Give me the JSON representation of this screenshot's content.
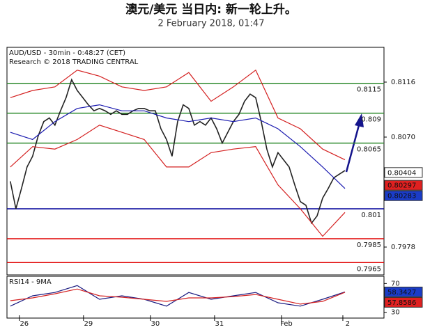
{
  "chart_data": [
    {
      "type": "line",
      "title": "澳元/美元 当日内: 新一轮上升。",
      "subtitle": "2 February 2018, 01:47",
      "annotations": [
        "AUD/USD - 30min - 0:48:27 (CET)",
        "Research © 2018 TRADING CENTRAL"
      ],
      "xlim": [
        -0.6,
        67
      ],
      "ylim": [
        0.79547,
        0.81451
      ],
      "yticks": [
        0.8116,
        {
          "value": 0.807,
          "label": "0.8070"
        },
        0.7978
      ],
      "levels": [
        {
          "value": 0.8115,
          "color": "#2e8b2e"
        },
        {
          "value": 0.809,
          "color": "#2e8b2e"
        },
        {
          "value": 0.8065,
          "color": "#2e8b2e"
        },
        {
          "value": 0.801,
          "color": "#00009a"
        },
        {
          "value": 0.7985,
          "color": "#e00000"
        },
        {
          "value": 0.7965,
          "color": "#e00000"
        }
      ],
      "series": [
        {
          "color": "#222222",
          "x": [
            0,
            1,
            2,
            3,
            4,
            5,
            6,
            7,
            8,
            9,
            10,
            11,
            12,
            13,
            14,
            15,
            16,
            17,
            18,
            19,
            20,
            21,
            22,
            23,
            24,
            25,
            26,
            27,
            28,
            29,
            30,
            31,
            32,
            33,
            34,
            35,
            36,
            37,
            38,
            39,
            40,
            41,
            42,
            43,
            44,
            45,
            46,
            47,
            48,
            49,
            50,
            51,
            52,
            53,
            54,
            55,
            56,
            57,
            58,
            59,
            60
          ],
          "values": [
            0.8033,
            0.801,
            0.8027,
            0.8045,
            0.8054,
            0.8071,
            0.8083,
            0.8086,
            0.808,
            0.8092,
            0.8103,
            0.8118,
            0.8109,
            0.8103,
            0.8097,
            0.8092,
            0.8094,
            0.8092,
            0.8089,
            0.8092,
            0.8089,
            0.8089,
            0.8092,
            0.8094,
            0.8094,
            0.8092,
            0.8092,
            0.8077,
            0.8068,
            0.8054,
            0.8083,
            0.8097,
            0.8094,
            0.808,
            0.8083,
            0.808,
            0.8086,
            0.8077,
            0.8065,
            0.8074,
            0.8083,
            0.8089,
            0.81,
            0.8106,
            0.8103,
            0.8083,
            0.806,
            0.8045,
            0.8057,
            0.8051,
            0.8045,
            0.803,
            0.8016,
            0.8013,
            0.7998,
            0.8004,
            0.8019,
            0.8027,
            0.8036,
            0.8039,
            0.8042
          ]
        },
        {
          "color": "#1a1ab0",
          "x": [
            0,
            4,
            8,
            12,
            16,
            20,
            24,
            28,
            32,
            36,
            40,
            44,
            48,
            52,
            56,
            60
          ],
          "values": [
            0.8074,
            0.8068,
            0.8083,
            0.8094,
            0.8097,
            0.8092,
            0.8092,
            0.8086,
            0.8083,
            0.8086,
            0.8083,
            0.8086,
            0.8077,
            0.8062,
            0.8045,
            0.8027
          ]
        },
        {
          "color": "#d42020",
          "x": [
            0,
            4,
            8,
            12,
            16,
            20,
            24,
            28,
            32,
            36,
            40,
            44,
            48,
            52,
            56,
            60
          ],
          "values": [
            0.8103,
            0.8109,
            0.8112,
            0.8126,
            0.8121,
            0.8112,
            0.8109,
            0.8112,
            0.8124,
            0.81,
            0.8112,
            0.8126,
            0.8086,
            0.8077,
            0.806,
            0.8051
          ]
        },
        {
          "color": "#d42020",
          "x": [
            0,
            4,
            8,
            12,
            16,
            20,
            24,
            28,
            32,
            36,
            40,
            44,
            48,
            52,
            56,
            60
          ],
          "values": [
            0.8045,
            0.8062,
            0.806,
            0.8068,
            0.808,
            0.8074,
            0.8068,
            0.8045,
            0.8045,
            0.8057,
            0.806,
            0.8062,
            0.803,
            0.801,
            0.7987,
            0.8007
          ]
        }
      ],
      "markers": [
        {
          "value": 0.80404,
          "color": "#ffffff"
        },
        {
          "value": 0.80297,
          "color": "#e02020"
        },
        {
          "value": 0.80283,
          "color": "#1a3cc8"
        }
      ]
    },
    {
      "type": "line",
      "title": "RSI14 - 9MA",
      "xlim": [
        -0.6,
        67
      ],
      "ylim": [
        22,
        80
      ],
      "yticks": [
        70,
        30
      ],
      "xticks": [
        {
          "value": 2.5,
          "label": "26"
        },
        {
          "value": 14,
          "label": "29"
        },
        {
          "value": 26,
          "label": "30"
        },
        {
          "value": 37.5,
          "label": "31"
        },
        {
          "value": 49.5,
          "label": "Feb"
        },
        {
          "value": 60.5,
          "label": "2"
        }
      ],
      "series": [
        {
          "color": "#1a1a80",
          "x": [
            0,
            4,
            8,
            12,
            16,
            20,
            24,
            28,
            32,
            36,
            40,
            44,
            48,
            52,
            56,
            60
          ],
          "values": [
            38.6,
            52.9,
            57.6,
            67.1,
            48.1,
            52.9,
            48.1,
            38.6,
            57.6,
            48.1,
            52.9,
            57.6,
            43.3,
            38.6,
            48.1,
            58.3
          ]
        },
        {
          "color": "#d42020",
          "x": [
            0,
            4,
            8,
            12,
            16,
            20,
            24,
            28,
            32,
            36,
            40,
            44,
            48,
            52,
            56,
            60
          ],
          "values": [
            46.2,
            50,
            55.7,
            62.4,
            52.9,
            51,
            48.1,
            45.2,
            50,
            50,
            51.9,
            54.8,
            48.1,
            41.4,
            45.2,
            57.9
          ]
        }
      ],
      "markers": [
        {
          "value": 58.3427,
          "color": "#1a3cc8"
        },
        {
          "value": 57.8586,
          "color": "#e02020"
        }
      ]
    }
  ]
}
